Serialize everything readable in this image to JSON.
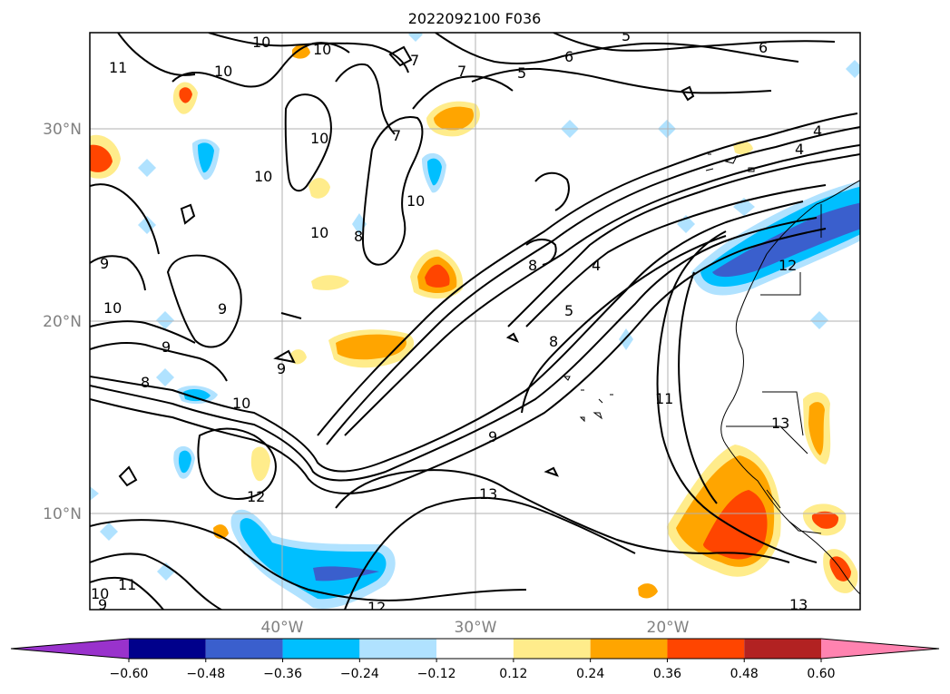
{
  "title": "2022092100 F036",
  "map": {
    "gridlines": true,
    "lat_labels": [
      "30°N",
      "20°N",
      "10°N"
    ],
    "lon_labels": [
      "40°W",
      "30°W",
      "20°W"
    ],
    "lat_values": [
      30,
      20,
      10
    ],
    "lon_values": [
      -40,
      -30,
      -20
    ],
    "extent": {
      "lon": [
        -50,
        -10
      ],
      "lat": [
        5,
        35
      ]
    }
  },
  "contours": {
    "color": "#000000",
    "labels": [
      "11",
      "10",
      "10",
      "10",
      "10",
      "10",
      "10",
      "10",
      "10",
      "10",
      "9",
      "9",
      "9",
      "9",
      "8",
      "8",
      "8",
      "8",
      "7",
      "7",
      "7",
      "6",
      "6",
      "5",
      "5",
      "5",
      "4",
      "4",
      "4",
      "11",
      "12",
      "12",
      "12",
      "13",
      "13",
      "13",
      "9",
      "11",
      "10",
      "9"
    ]
  },
  "fill_levels": {
    "colors": {
      "neg_060": "#9932CC",
      "neg_048": "#00008B",
      "neg_036": "#3A5FCD",
      "neg_024": "#00BFFF",
      "neg_012": "#B0E2FF",
      "neutral": "#FFFFFF",
      "pos_012": "#FFEC8B",
      "pos_024": "#FFA500",
      "pos_036": "#FF4500",
      "pos_048": "#B22222",
      "pos_060": "#FF83B0"
    }
  },
  "colorbar": {
    "ticks": [
      "−0.60",
      "−0.48",
      "−0.36",
      "−0.24",
      "−0.12",
      "0.12",
      "0.24",
      "0.36",
      "0.48",
      "0.60"
    ],
    "colors": [
      "#9932CC",
      "#00008B",
      "#3A5FCD",
      "#00BFFF",
      "#B0E2FF",
      "#FFFFFF",
      "#FFEC8B",
      "#FFA500",
      "#FF4500",
      "#B22222",
      "#FF83B0"
    ],
    "extend": "both"
  }
}
